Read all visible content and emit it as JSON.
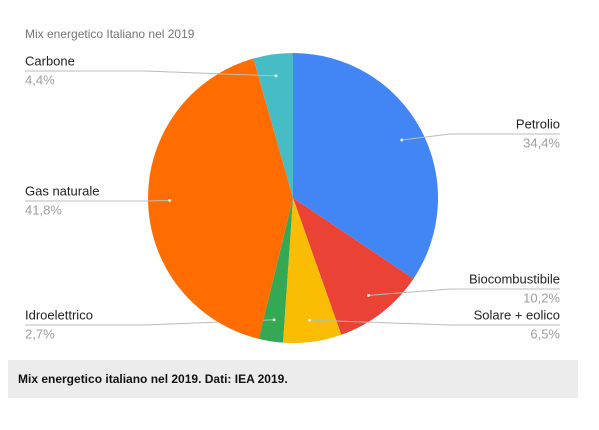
{
  "chart_data": {
    "type": "pie",
    "title": "Mix energetico Italiano nel 2019",
    "categories": [
      "Petrolio",
      "Biocombustibile",
      "Solare + eolico",
      "Idroelettrico",
      "Gas naturale",
      "Carbone"
    ],
    "values": [
      34.4,
      10.2,
      6.5,
      2.7,
      41.8,
      4.4
    ],
    "value_labels": [
      "34,4%",
      "10,2%",
      "6,5%",
      "2,7%",
      "41,8%",
      "4,4%"
    ],
    "colors": [
      "#4285f4",
      "#ea4335",
      "#fbbc04",
      "#34a853",
      "#ff6d01",
      "#46bdc6"
    ]
  },
  "caption": "Mix energetico italiano nel 2019. Dati: IEA 2019."
}
